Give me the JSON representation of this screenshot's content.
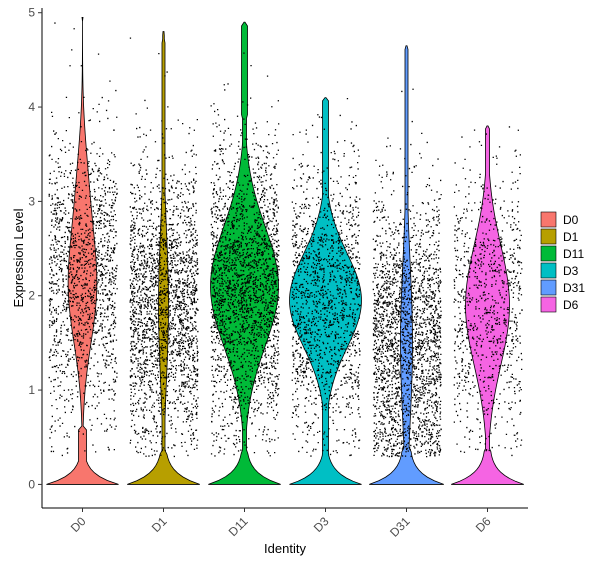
{
  "chart_data": {
    "type": "violin",
    "xlabel": "Identity",
    "ylabel": "Expression Level",
    "ylim": [
      -0.25,
      5.05
    ],
    "y_ticks": [
      "0",
      "1",
      "2",
      "3",
      "4",
      "5"
    ],
    "categories": [
      "D0",
      "D1",
      "D11",
      "D3",
      "D31",
      "D6"
    ],
    "legend": {
      "position": "right",
      "entries": [
        "D0",
        "D1",
        "D11",
        "D3",
        "D31",
        "D6"
      ]
    },
    "grid": false,
    "jittered_points": true,
    "series": [
      {
        "name": "D0",
        "color": "#F8766D",
        "max": 4.95,
        "median": 2.2,
        "zero_spike": true,
        "point_density": "medium"
      },
      {
        "name": "D1",
        "color": "#B79F00",
        "max": 4.8,
        "median": 1.9,
        "zero_spike": true,
        "point_density": "high"
      },
      {
        "name": "D11",
        "color": "#00BA38",
        "max": 4.9,
        "median": 2.1,
        "zero_spike": true,
        "point_density": "high"
      },
      {
        "name": "D3",
        "color": "#00BFC4",
        "max": 4.1,
        "median": 1.95,
        "zero_spike": true,
        "point_density": "medium"
      },
      {
        "name": "D31",
        "color": "#619CFF",
        "max": 4.65,
        "median": 1.5,
        "zero_spike": true,
        "point_density": "high"
      },
      {
        "name": "D6",
        "color": "#F564E3",
        "max": 3.8,
        "median": 1.9,
        "zero_spike": true,
        "point_density": "low"
      }
    ]
  }
}
